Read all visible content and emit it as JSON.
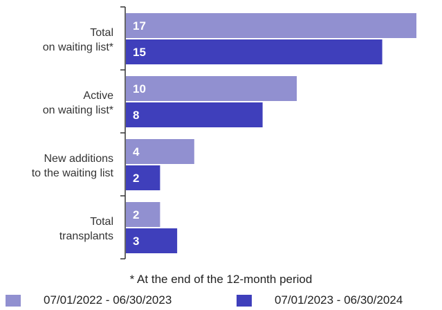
{
  "chart_data": {
    "type": "bar",
    "orientation": "horizontal",
    "categories": [
      [
        "Total",
        "on waiting list*"
      ],
      [
        "Active",
        "on waiting list*"
      ],
      [
        "New additions",
        "to the waiting list"
      ],
      [
        "Total",
        "transplants"
      ]
    ],
    "series": [
      {
        "name": "07/01/2022 - 06/30/2023",
        "color": "#9190d0",
        "values": [
          17,
          10,
          4,
          2
        ]
      },
      {
        "name": "07/01/2023 - 06/30/2024",
        "color": "#3f3fbb",
        "values": [
          15,
          8,
          2,
          3
        ]
      }
    ],
    "xlim": [
      0,
      17
    ],
    "grid": false,
    "legend_position": "bottom",
    "footnote": "* At the end of the 12-month period"
  }
}
